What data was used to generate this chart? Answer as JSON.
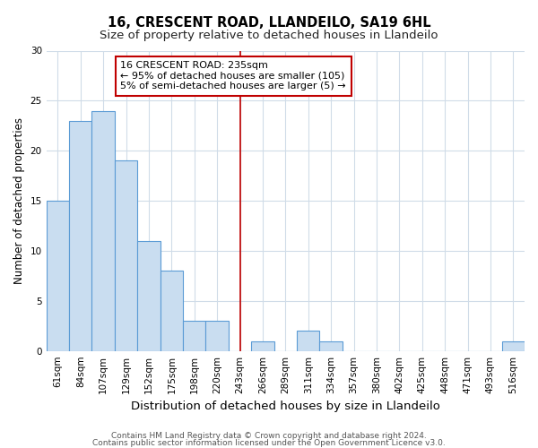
{
  "title": "16, CRESCENT ROAD, LLANDEILO, SA19 6HL",
  "subtitle": "Size of property relative to detached houses in Llandeilo",
  "xlabel": "Distribution of detached houses by size in Llandeilo",
  "ylabel": "Number of detached properties",
  "categories": [
    "61sqm",
    "84sqm",
    "107sqm",
    "129sqm",
    "152sqm",
    "175sqm",
    "198sqm",
    "220sqm",
    "243sqm",
    "266sqm",
    "289sqm",
    "311sqm",
    "334sqm",
    "357sqm",
    "380sqm",
    "402sqm",
    "425sqm",
    "448sqm",
    "471sqm",
    "493sqm",
    "516sqm"
  ],
  "values": [
    15,
    23,
    24,
    19,
    11,
    8,
    3,
    3,
    0,
    1,
    0,
    2,
    1,
    0,
    0,
    0,
    0,
    0,
    0,
    0,
    1
  ],
  "bar_color": "#c9ddf0",
  "bar_edge_color": "#5b9bd5",
  "property_line_index": 8,
  "property_line_color": "#c00000",
  "ylim": [
    0,
    30
  ],
  "yticks": [
    0,
    5,
    10,
    15,
    20,
    25,
    30
  ],
  "annotation_text": "16 CRESCENT ROAD: 235sqm\n← 95% of detached houses are smaller (105)\n5% of semi-detached houses are larger (5) →",
  "annotation_box_color": "#c00000",
  "footnote1": "Contains HM Land Registry data © Crown copyright and database right 2024.",
  "footnote2": "Contains public sector information licensed under the Open Government Licence v3.0.",
  "bg_color": "#ffffff",
  "grid_color": "#d0dce8",
  "title_fontsize": 10.5,
  "subtitle_fontsize": 9.5,
  "xlabel_fontsize": 9.5,
  "ylabel_fontsize": 8.5,
  "tick_fontsize": 7.5,
  "annotation_fontsize": 8,
  "footnote_fontsize": 6.5
}
